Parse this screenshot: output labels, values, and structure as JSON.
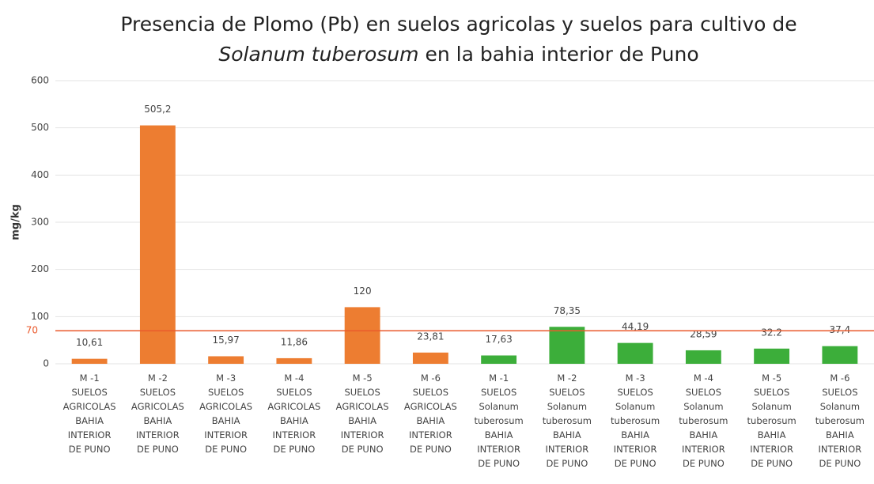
{
  "chart_data": {
    "type": "bar",
    "title": [
      "Presencia de Plomo (Pb) en suelos agricolas y suelos para cultivo de",
      "Solanum tuberosum",
      "en la bahia interior de Puno"
    ],
    "y_label": "mg/kg",
    "categories": [
      "M -1\nSUELOS\nAGRICOLAS\nBAHIA\nINTERIOR\nDE PUNO",
      "M -2\nSUELOS\nAGRICOLAS\nBAHIA\nINTERIOR\nDE PUNO",
      "M -3\nSUELOS\nAGRICOLAS\nBAHIA\nINTERIOR\nDE PUNO",
      "M -4\nSUELOS\nAGRICOLAS\nBAHIA\nINTERIOR\nDE PUNO",
      "M -5\nSUELOS\nAGRICOLAS\nBAHIA\nINTERIOR\nDE PUNO",
      "M -6\nSUELOS\nAGRICOLAS\nBAHIA\nINTERIOR\nDE PUNO",
      "M -1\nSUELOS\nSolanum\ntuberosum\nBAHIA\nINTERIOR\nDE PUNO",
      "M -2\nSUELOS\nSolanum\ntuberosum\nBAHIA\nINTERIOR\nDE PUNO",
      "M -3\nSUELOS\nSolanum\ntuberosum\nBAHIA\nINTERIOR\nDE PUNO",
      "M -4\nSUELOS\nSolanum\ntuberosum\nBAHIA\nINTERIOR\nDE PUNO",
      "M -5\nSUELOS\nSolanum\ntuberosum\nBAHIA\nINTERIOR\nDE PUNO",
      "M -6\nSUELOS\nSolanum\ntuberosum\nBAHIA\nINTERIOR\nDE PUNO"
    ],
    "values": [
      10.61,
      505.2,
      15.97,
      11.86,
      120,
      23.81,
      17.63,
      78.35,
      44.19,
      28.59,
      32.2,
      37.4
    ],
    "value_labels": [
      "10,61",
      "505,2",
      "15,97",
      "11,86",
      "120",
      "23,81",
      "17,63",
      "78,35",
      "44,19",
      "28,59",
      "32.2",
      "37,4"
    ],
    "colors": [
      "#ed7d31",
      "#ed7d31",
      "#ed7d31",
      "#ed7d31",
      "#ed7d31",
      "#ed7d31",
      "#3cae3a",
      "#3cae3a",
      "#3cae3a",
      "#3cae3a",
      "#3cae3a",
      "#3cae3a"
    ],
    "reference_line": {
      "value": 70,
      "color": "#ea5a2c"
    },
    "ylim": [
      0,
      600
    ],
    "yticks": [
      0,
      100,
      200,
      300,
      400,
      500,
      600
    ],
    "grid": true
  }
}
